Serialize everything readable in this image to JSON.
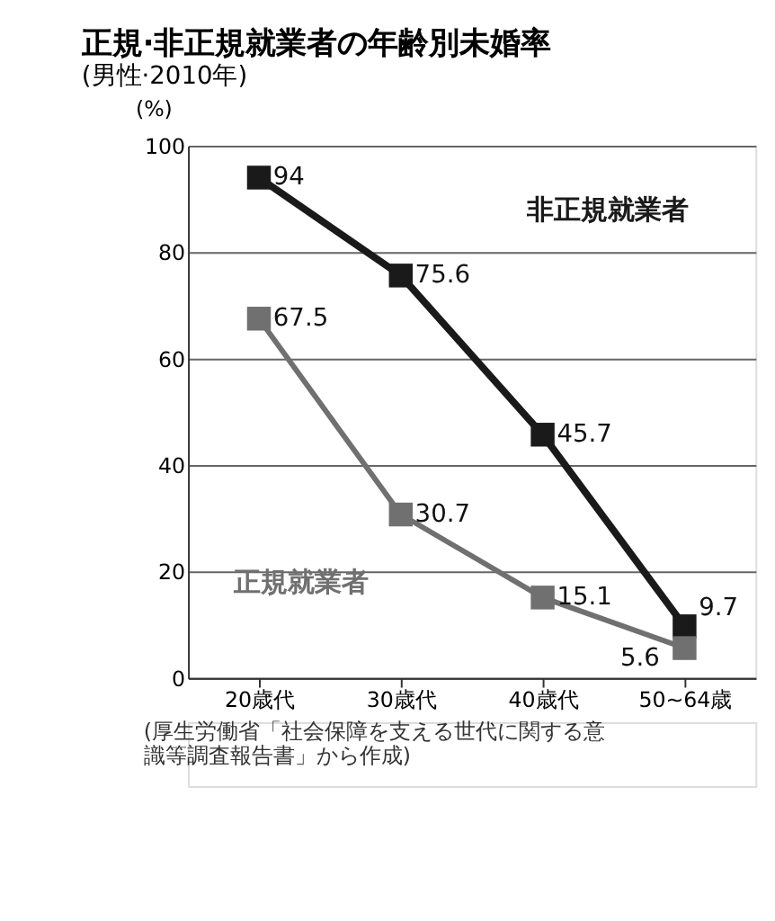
{
  "chart_data": {
    "type": "line",
    "title": "正規·非正規就業者の年齢別未婚率",
    "subtitle": "(男性·2010年)",
    "ylabel": "(%)",
    "categories": [
      "20歳代",
      "30歳代",
      "40歳代",
      "50~64歳"
    ],
    "series": [
      {
        "name": "非正規就業者",
        "color": "#1a1a1a",
        "values": [
          94,
          75.6,
          45.7,
          9.7
        ]
      },
      {
        "name": "正規就業者",
        "color": "#707070",
        "values": [
          67.5,
          30.7,
          15.1,
          5.6
        ]
      }
    ],
    "ylim": [
      0,
      100
    ],
    "yticks": [
      0,
      20,
      40,
      60,
      80,
      100
    ],
    "grid": "y",
    "legend": false,
    "marker": "square",
    "line_style": "solid",
    "data_labels": true,
    "annotations": [
      "(厚生労働省「社会保障を支える世代に関する意識等調査報告書」から作成)"
    ]
  }
}
